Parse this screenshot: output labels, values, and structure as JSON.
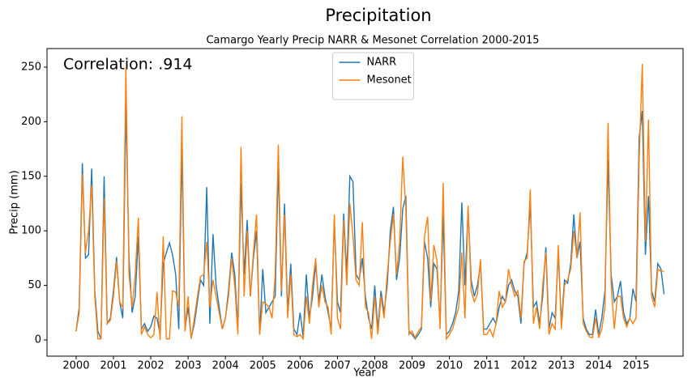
{
  "chart_data": {
    "type": "line",
    "suptitle": "Precipitation",
    "title": "Camargo Yearly Precip NARR & Mesonet Correlation 2000-2015",
    "annotation": "Correlation: .914",
    "xlabel": "Year",
    "ylabel": "Precip (mm)",
    "xlim": [
      1999.22,
      2016.26
    ],
    "ylim": [
      -14.8,
      267
    ],
    "xticks": [
      2000,
      2001,
      2002,
      2003,
      2004,
      2005,
      2006,
      2007,
      2008,
      2009,
      2010,
      2011,
      2012,
      2013,
      2014,
      2015
    ],
    "yticks": [
      0,
      50,
      100,
      150,
      200,
      250
    ],
    "legend": "upper center",
    "x": [
      2000,
      2000.083,
      2000.167,
      2000.25,
      2000.333,
      2000.417,
      2000.5,
      2000.583,
      2000.667,
      2000.75,
      2000.833,
      2000.917,
      2001,
      2001.083,
      2001.167,
      2001.25,
      2001.333,
      2001.417,
      2001.5,
      2001.583,
      2001.667,
      2001.75,
      2001.833,
      2001.917,
      2002,
      2002.083,
      2002.167,
      2002.25,
      2002.333,
      2002.417,
      2002.5,
      2002.583,
      2002.667,
      2002.75,
      2002.833,
      2002.917,
      2003,
      2003.083,
      2003.167,
      2003.25,
      2003.333,
      2003.417,
      2003.5,
      2003.583,
      2003.667,
      2003.75,
      2003.833,
      2003.917,
      2004,
      2004.083,
      2004.167,
      2004.25,
      2004.333,
      2004.417,
      2004.5,
      2004.583,
      2004.667,
      2004.75,
      2004.833,
      2004.917,
      2005,
      2005.083,
      2005.167,
      2005.25,
      2005.333,
      2005.417,
      2005.5,
      2005.583,
      2005.667,
      2005.75,
      2005.833,
      2005.917,
      2006,
      2006.083,
      2006.167,
      2006.25,
      2006.333,
      2006.417,
      2006.5,
      2006.583,
      2006.667,
      2006.75,
      2006.833,
      2006.917,
      2007,
      2007.083,
      2007.167,
      2007.25,
      2007.333,
      2007.417,
      2007.5,
      2007.583,
      2007.667,
      2007.75,
      2007.833,
      2007.917,
      2008,
      2008.083,
      2008.167,
      2008.25,
      2008.333,
      2008.417,
      2008.5,
      2008.583,
      2008.667,
      2008.75,
      2008.833,
      2008.917,
      2009,
      2009.083,
      2009.167,
      2009.25,
      2009.333,
      2009.417,
      2009.5,
      2009.583,
      2009.667,
      2009.75,
      2009.833,
      2009.917,
      2010,
      2010.083,
      2010.167,
      2010.25,
      2010.333,
      2010.417,
      2010.5,
      2010.583,
      2010.667,
      2010.75,
      2010.833,
      2010.917,
      2011,
      2011.083,
      2011.167,
      2011.25,
      2011.333,
      2011.417,
      2011.5,
      2011.583,
      2011.667,
      2011.75,
      2011.833,
      2011.917,
      2012,
      2012.083,
      2012.167,
      2012.25,
      2012.333,
      2012.417,
      2012.5,
      2012.583,
      2012.667,
      2012.75,
      2012.833,
      2012.917,
      2013,
      2013.083,
      2013.167,
      2013.25,
      2013.333,
      2013.417,
      2013.5,
      2013.583,
      2013.667,
      2013.75,
      2013.833,
      2013.917,
      2014,
      2014.083,
      2014.167,
      2014.25,
      2014.333,
      2014.417,
      2014.5,
      2014.583,
      2014.667,
      2014.75,
      2014.833,
      2014.917,
      2015,
      2015.083,
      2015.167,
      2015.25,
      2015.333,
      2015.417,
      2015.5,
      2015.583,
      2015.667,
      2015.75
    ],
    "series": [
      {
        "name": "NARR",
        "color": "#1f77b4",
        "values": [
          8,
          30,
          162,
          75,
          78,
          157,
          45,
          8,
          1,
          150,
          15,
          20,
          45,
          76,
          35,
          20,
          215,
          75,
          25,
          40,
          95,
          10,
          15,
          8,
          12,
          22,
          20,
          5,
          70,
          80,
          89,
          78,
          60,
          10,
          175,
          10,
          30,
          2,
          15,
          35,
          55,
          50,
          140,
          15,
          97,
          50,
          30,
          10,
          20,
          45,
          80,
          60,
          10,
          143,
          60,
          110,
          40,
          75,
          100,
          5,
          65,
          25,
          30,
          35,
          40,
          160,
          40,
          125,
          25,
          70,
          10,
          5,
          25,
          3,
          60,
          20,
          40,
          70,
          35,
          60,
          40,
          25,
          10,
          110,
          35,
          25,
          116,
          60,
          150,
          145,
          60,
          55,
          75,
          40,
          20,
          10,
          50,
          10,
          45,
          25,
          50,
          100,
          122,
          55,
          75,
          120,
          132,
          8,
          5,
          1,
          5,
          10,
          90,
          75,
          30,
          70,
          65,
          15,
          115,
          5,
          8,
          15,
          25,
          45,
          126,
          50,
          120,
          55,
          40,
          50,
          70,
          10,
          10,
          15,
          20,
          15,
          30,
          40,
          35,
          50,
          55,
          45,
          40,
          15,
          70,
          80,
          125,
          30,
          35,
          15,
          40,
          85,
          10,
          25,
          20,
          80,
          15,
          55,
          52,
          70,
          115,
          75,
          90,
          20,
          10,
          5,
          5,
          28,
          5,
          20,
          45,
          165,
          60,
          35,
          40,
          54,
          25,
          15,
          20,
          47,
          35,
          185,
          210,
          78,
          132,
          45,
          35,
          70,
          65,
          42
        ]
      },
      {
        "name": "Mesonet",
        "color": "#ff7f0e",
        "values": [
          8,
          25,
          152,
          80,
          100,
          142,
          40,
          1,
          1,
          130,
          15,
          18,
          40,
          72,
          35,
          30,
          250,
          60,
          30,
          60,
          112,
          5,
          12,
          5,
          2,
          5,
          44,
          0,
          95,
          1,
          1,
          45,
          44,
          30,
          205,
          8,
          40,
          1,
          20,
          40,
          58,
          60,
          90,
          30,
          55,
          40,
          25,
          10,
          20,
          40,
          75,
          50,
          5,
          177,
          40,
          100,
          40,
          80,
          115,
          5,
          35,
          33,
          30,
          20,
          60,
          179,
          45,
          115,
          20,
          60,
          5,
          3,
          5,
          1,
          40,
          15,
          50,
          75,
          30,
          50,
          35,
          30,
          5,
          115,
          20,
          10,
          110,
          50,
          125,
          95,
          55,
          50,
          108,
          30,
          25,
          1,
          40,
          5,
          40,
          20,
          60,
          90,
          115,
          60,
          90,
          168,
          120,
          5,
          8,
          2,
          8,
          12,
          95,
          113,
          35,
          87,
          73,
          10,
          144,
          1,
          5,
          10,
          20,
          30,
          80,
          20,
          123,
          45,
          35,
          42,
          74,
          5,
          5,
          10,
          3,
          15,
          45,
          30,
          35,
          65,
          50,
          40,
          45,
          20,
          72,
          75,
          138,
          15,
          30,
          10,
          50,
          80,
          5,
          15,
          10,
          87,
          10,
          50,
          55,
          65,
          100,
          75,
          117,
          15,
          8,
          3,
          2,
          20,
          2,
          10,
          30,
          199,
          50,
          10,
          40,
          40,
          20,
          12,
          20,
          15,
          20,
          165,
          253,
          90,
          202,
          40,
          30,
          65,
          63,
          63
        ]
      }
    ]
  }
}
